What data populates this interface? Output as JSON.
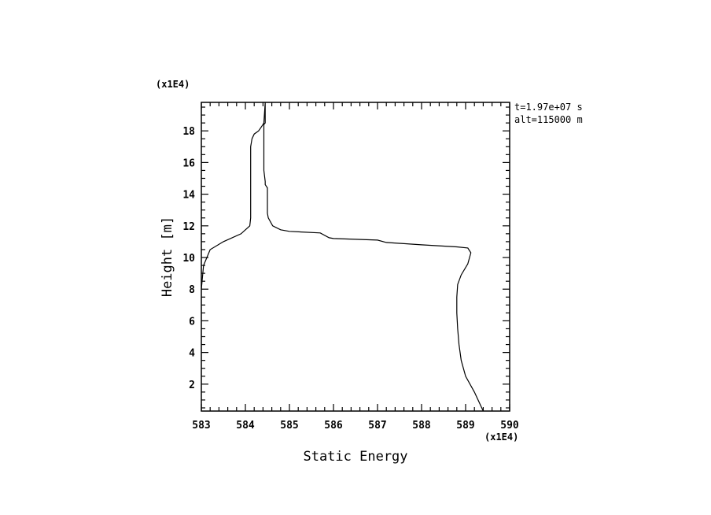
{
  "chart_data": {
    "type": "line",
    "title": "",
    "xlabel": "Static Energy",
    "ylabel": "Height [m]",
    "x_scale_label": "(x1E4)",
    "y_scale_label": "(x1E4)",
    "annotations": [
      "t=1.97e+07 s",
      "alt=115000 m"
    ],
    "xlim": [
      583,
      590
    ],
    "ylim": [
      0.3,
      19.8
    ],
    "x_ticks": [
      "583",
      "584",
      "585",
      "586",
      "587",
      "588",
      "589",
      "590"
    ],
    "y_ticks": [
      "2",
      "4",
      "6",
      "8",
      "10",
      "12",
      "14",
      "16",
      "18"
    ],
    "grid": false,
    "series": [
      {
        "x": [
          589.4,
          589.2,
          589.0,
          588.9,
          588.85,
          588.82,
          588.8,
          588.8,
          588.82,
          588.9,
          589.05,
          589.12,
          589.05,
          588.8,
          588.0,
          587.2,
          587.0,
          586.0,
          585.9,
          585.7,
          585.0,
          584.8,
          584.62,
          584.52,
          584.5,
          584.5,
          584.45,
          584.45,
          584.42,
          584.42,
          584.45,
          584.45,
          584.42,
          584.4,
          584.35,
          584.3,
          584.2,
          584.15,
          584.12,
          584.12,
          584.1,
          583.9,
          583.5,
          583.2,
          583.05,
          583.0
        ],
        "y": [
          0.3,
          1.5,
          2.5,
          3.5,
          4.5,
          5.5,
          6.5,
          7.5,
          8.3,
          8.9,
          9.6,
          10.3,
          10.6,
          10.67,
          10.8,
          10.95,
          11.1,
          11.2,
          11.25,
          11.55,
          11.65,
          11.75,
          12.0,
          12.5,
          12.8,
          14.4,
          14.6,
          14.8,
          15.5,
          18.4,
          18.5,
          19.8,
          18.5,
          18.4,
          18.2,
          18.0,
          17.8,
          17.5,
          17.0,
          12.5,
          12.0,
          11.5,
          11.0,
          10.5,
          9.5,
          8.0
        ]
      }
    ]
  }
}
